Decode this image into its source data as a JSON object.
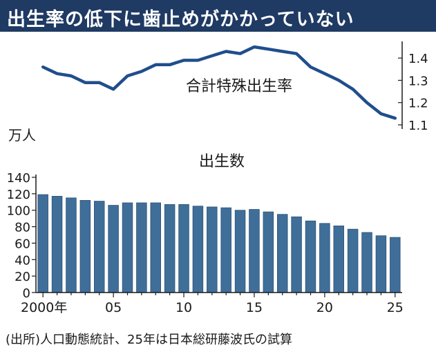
{
  "title": "出生率の低下に歯止めがかかっていない",
  "source": "(出所)人口動態統計、25年は日本総研藤波氏の試算",
  "colors": {
    "title_bg": "#1f3a63",
    "line": "#1f4e8c",
    "bar": "#3f6e99",
    "bar_edge": "#2c5278"
  },
  "chart_data": [
    {
      "type": "line",
      "title": "合計特殊出生率",
      "x": [
        2000,
        2001,
        2002,
        2003,
        2004,
        2005,
        2006,
        2007,
        2008,
        2009,
        2010,
        2011,
        2012,
        2013,
        2014,
        2015,
        2016,
        2017,
        2018,
        2019,
        2020,
        2021,
        2022,
        2023,
        2024,
        2025
      ],
      "values": [
        1.36,
        1.33,
        1.32,
        1.29,
        1.29,
        1.26,
        1.32,
        1.34,
        1.37,
        1.37,
        1.39,
        1.39,
        1.41,
        1.43,
        1.42,
        1.45,
        1.44,
        1.43,
        1.42,
        1.36,
        1.33,
        1.3,
        1.26,
        1.2,
        1.15,
        1.13
      ],
      "ylim": [
        1.1,
        1.45
      ],
      "yticks": [
        1.1,
        1.2,
        1.3,
        1.4
      ],
      "ytick_labels": [
        "1.1",
        "1.2",
        "1.3",
        "1.4"
      ],
      "axis_side": "right"
    },
    {
      "type": "bar",
      "title": "出生数",
      "ylabel": "万人",
      "x": [
        2000,
        2001,
        2002,
        2003,
        2004,
        2005,
        2006,
        2007,
        2008,
        2009,
        2010,
        2011,
        2012,
        2013,
        2014,
        2015,
        2016,
        2017,
        2018,
        2019,
        2020,
        2021,
        2022,
        2023,
        2024,
        2025
      ],
      "values": [
        119,
        117,
        115,
        112,
        111,
        106,
        109,
        109,
        109,
        107,
        107,
        105,
        104,
        103,
        100,
        101,
        98,
        95,
        92,
        87,
        84,
        81,
        77,
        73,
        69,
        67
      ],
      "ylim": [
        0,
        140
      ],
      "yticks": [
        0,
        20,
        40,
        60,
        80,
        100,
        120,
        140
      ],
      "ytick_labels": [
        "0",
        "20",
        "40",
        "60",
        "80",
        "100",
        "120",
        "140"
      ],
      "xticks": [
        2000,
        2005,
        2010,
        2015,
        2020,
        2025
      ],
      "xtick_labels": [
        "2000年",
        "05",
        "10",
        "15",
        "20",
        "25"
      ]
    }
  ]
}
